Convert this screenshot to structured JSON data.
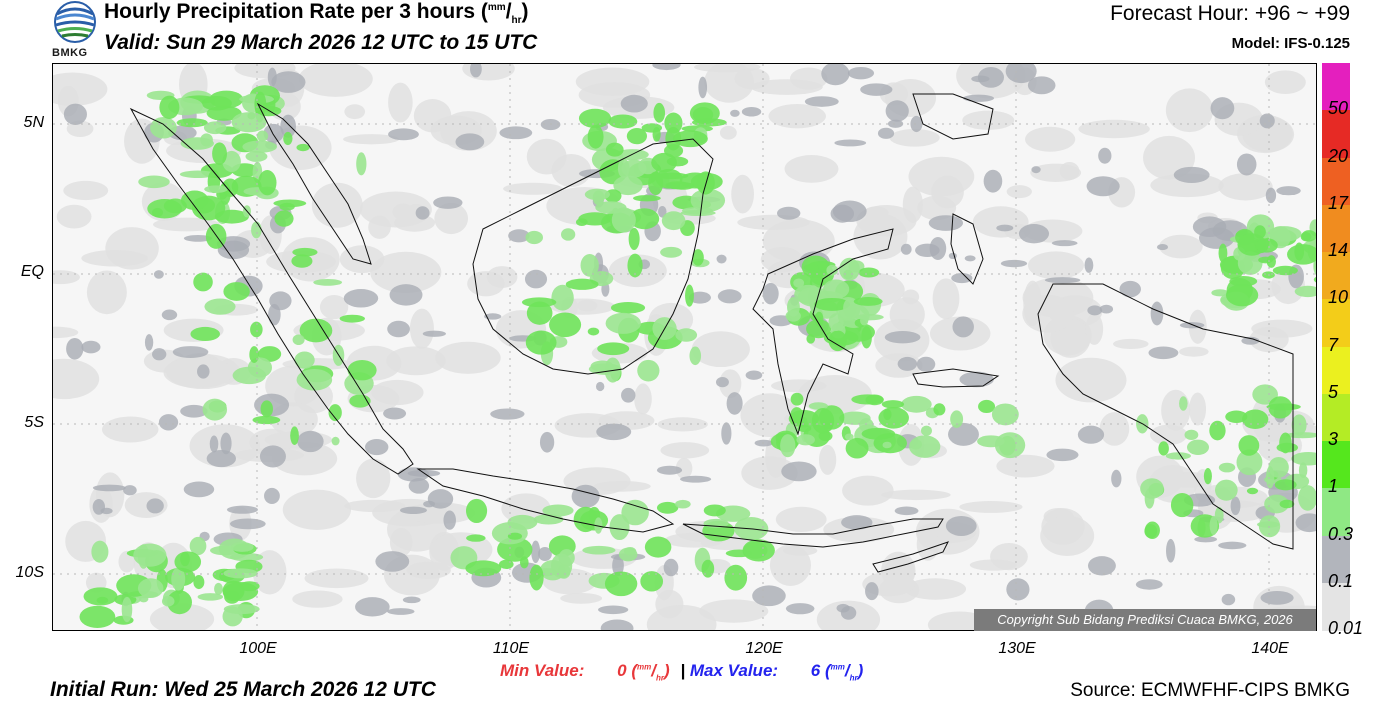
{
  "header": {
    "title_main": "Hourly Precipitation Rate per 3 hours (",
    "title_unit_num": "mm",
    "title_unit_den": "hr",
    "title_close": ")",
    "valid": "Valid: Sun 29 March 2026 12 UTC to 15 UTC",
    "forecast_hour": "Forecast Hour: +96 ~ +99",
    "model": "Model: IFS-0.125",
    "logo_text": "BMKG"
  },
  "map": {
    "lat_labels": [
      "5N",
      "EQ",
      "5S",
      "10S"
    ],
    "lon_labels": [
      "100E",
      "110E",
      "120E",
      "130E",
      "140E"
    ],
    "copyright": "Copyright Sub Bidang Prediksi Cuaca BMKG, 2026"
  },
  "legend": {
    "labels": [
      "50",
      "20",
      "17",
      "14",
      "10",
      "7",
      "5",
      "3",
      "1",
      "0.3",
      "0.1",
      "0.01"
    ],
    "colors": [
      "#e41fbe",
      "#e62a25",
      "#ee6022",
      "#f08c1f",
      "#f1aa1e",
      "#f3cd19",
      "#ebf01f",
      "#b4ec25",
      "#55e71d",
      "#8fe884",
      "#b2b5bc",
      "#e4e4e4"
    ]
  },
  "footer": {
    "min_label": "Min Value:",
    "min_value": "0",
    "separator": "|",
    "max_label": "Max Value:",
    "max_value": "6",
    "unit_num": "mm",
    "unit_den": "hr",
    "initial_run": "Initial Run: Wed 25 March 2026 12 UTC",
    "source": "Source: ECMWFHF-CIPS BMKG"
  }
}
